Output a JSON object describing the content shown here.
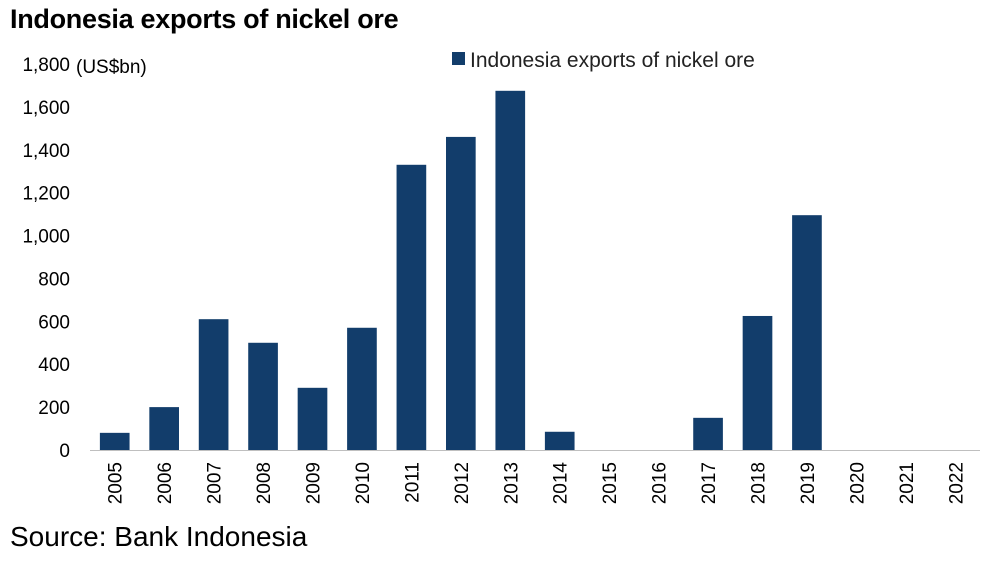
{
  "chart_data": {
    "type": "bar",
    "title": "Indonesia exports of nickel ore",
    "unit_label": "(US$bn)",
    "source": "Source: Bank Indonesia",
    "categories": [
      "2005",
      "2006",
      "2007",
      "2008",
      "2009",
      "2010",
      "2011",
      "2012",
      "2013",
      "2014",
      "2015",
      "2016",
      "2017",
      "2018",
      "2019",
      "2020",
      "2021",
      "2022"
    ],
    "series": [
      {
        "name": "Indonesia exports of nickel ore",
        "color": "#123d6b",
        "values": [
          80,
          200,
          610,
          500,
          290,
          570,
          1330,
          1460,
          1675,
          85,
          0,
          0,
          150,
          625,
          1095,
          0,
          0,
          0
        ]
      }
    ],
    "yticks": [
      "0",
      "200",
      "400",
      "600",
      "800",
      "1,000",
      "1,200",
      "1,400",
      "1,600",
      "1,800"
    ],
    "ylim": [
      0,
      1800
    ],
    "grid": false,
    "legend": "top-center"
  }
}
